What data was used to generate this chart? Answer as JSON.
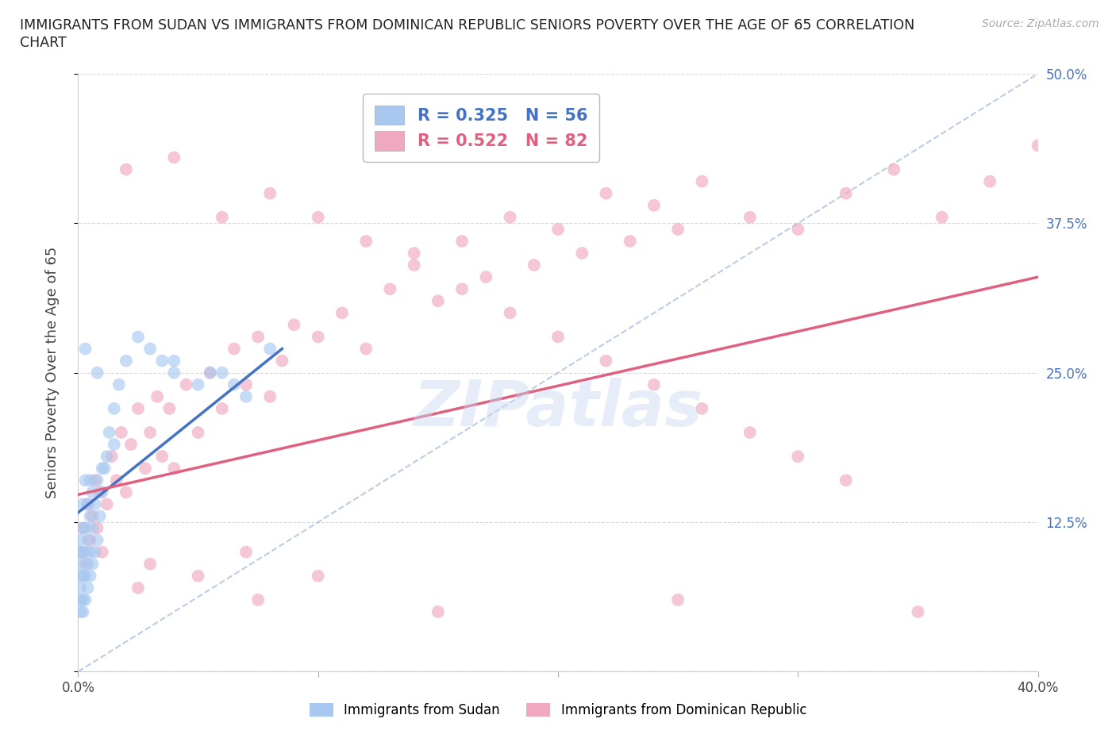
{
  "title": "IMMIGRANTS FROM SUDAN VS IMMIGRANTS FROM DOMINICAN REPUBLIC SENIORS POVERTY OVER THE AGE OF 65 CORRELATION\nCHART",
  "source": "Source: ZipAtlas.com",
  "ylabel": "Seniors Poverty Over the Age of 65",
  "xlim": [
    0.0,
    0.4
  ],
  "ylim": [
    0.0,
    0.5
  ],
  "xticks": [
    0.0,
    0.1,
    0.2,
    0.3,
    0.4
  ],
  "xticklabels": [
    "0.0%",
    "",
    "",
    "",
    "40.0%"
  ],
  "yticks": [
    0.0,
    0.125,
    0.25,
    0.375,
    0.5
  ],
  "yticklabels": [
    "",
    "12.5%",
    "25.0%",
    "37.5%",
    "50.0%"
  ],
  "color_sudan": "#a8c8f0",
  "color_dr": "#f0a8c0",
  "color_sudan_line": "#4472C4",
  "color_dr_line": "#e06080",
  "color_diagonal": "#a0b8d8",
  "watermark": "ZIPatlas",
  "legend_sudan_label": "R = 0.325   N = 56",
  "legend_dr_label": "R = 0.522   N = 82",
  "legend_sudan_color": "#a8c8f0",
  "legend_dr_color": "#f0a8c0",
  "legend_text_color_sudan": "#4472C4",
  "legend_text_color_dr": "#e06080",
  "sudan_x": [
    0.001,
    0.001,
    0.001,
    0.001,
    0.001,
    0.001,
    0.001,
    0.002,
    0.002,
    0.002,
    0.002,
    0.002,
    0.002,
    0.003,
    0.003,
    0.003,
    0.003,
    0.003,
    0.004,
    0.004,
    0.004,
    0.004,
    0.005,
    0.005,
    0.005,
    0.005,
    0.006,
    0.006,
    0.006,
    0.007,
    0.007,
    0.008,
    0.008,
    0.009,
    0.01,
    0.011,
    0.012,
    0.013,
    0.015,
    0.017,
    0.02,
    0.025,
    0.03,
    0.035,
    0.04,
    0.05,
    0.06,
    0.07,
    0.08,
    0.04,
    0.055,
    0.065,
    0.015,
    0.01,
    0.008,
    0.003
  ],
  "sudan_y": [
    0.05,
    0.06,
    0.07,
    0.08,
    0.09,
    0.1,
    0.11,
    0.05,
    0.06,
    0.08,
    0.1,
    0.12,
    0.14,
    0.06,
    0.08,
    0.1,
    0.12,
    0.16,
    0.07,
    0.09,
    0.11,
    0.14,
    0.08,
    0.1,
    0.13,
    0.16,
    0.09,
    0.12,
    0.15,
    0.1,
    0.14,
    0.11,
    0.16,
    0.13,
    0.15,
    0.17,
    0.18,
    0.2,
    0.22,
    0.24,
    0.26,
    0.28,
    0.27,
    0.26,
    0.25,
    0.24,
    0.25,
    0.23,
    0.27,
    0.26,
    0.25,
    0.24,
    0.19,
    0.17,
    0.25,
    0.27
  ],
  "dr_x": [
    0.001,
    0.002,
    0.003,
    0.004,
    0.005,
    0.006,
    0.007,
    0.008,
    0.009,
    0.01,
    0.012,
    0.014,
    0.016,
    0.018,
    0.02,
    0.022,
    0.025,
    0.028,
    0.03,
    0.033,
    0.035,
    0.038,
    0.04,
    0.045,
    0.05,
    0.055,
    0.06,
    0.065,
    0.07,
    0.075,
    0.08,
    0.085,
    0.09,
    0.1,
    0.11,
    0.12,
    0.13,
    0.14,
    0.15,
    0.16,
    0.17,
    0.18,
    0.19,
    0.2,
    0.21,
    0.22,
    0.23,
    0.24,
    0.25,
    0.26,
    0.28,
    0.3,
    0.32,
    0.34,
    0.36,
    0.38,
    0.4,
    0.02,
    0.04,
    0.06,
    0.08,
    0.1,
    0.12,
    0.14,
    0.16,
    0.18,
    0.2,
    0.22,
    0.24,
    0.26,
    0.28,
    0.3,
    0.32,
    0.025,
    0.05,
    0.075,
    0.15,
    0.25,
    0.35,
    0.03,
    0.07,
    0.1
  ],
  "dr_y": [
    0.1,
    0.12,
    0.09,
    0.14,
    0.11,
    0.13,
    0.16,
    0.12,
    0.15,
    0.1,
    0.14,
    0.18,
    0.16,
    0.2,
    0.15,
    0.19,
    0.22,
    0.17,
    0.2,
    0.23,
    0.18,
    0.22,
    0.17,
    0.24,
    0.2,
    0.25,
    0.22,
    0.27,
    0.24,
    0.28,
    0.23,
    0.26,
    0.29,
    0.28,
    0.3,
    0.27,
    0.32,
    0.35,
    0.31,
    0.36,
    0.33,
    0.38,
    0.34,
    0.37,
    0.35,
    0.4,
    0.36,
    0.39,
    0.37,
    0.41,
    0.38,
    0.37,
    0.4,
    0.42,
    0.38,
    0.41,
    0.44,
    0.42,
    0.43,
    0.38,
    0.4,
    0.38,
    0.36,
    0.34,
    0.32,
    0.3,
    0.28,
    0.26,
    0.24,
    0.22,
    0.2,
    0.18,
    0.16,
    0.07,
    0.08,
    0.06,
    0.05,
    0.06,
    0.05,
    0.09,
    0.1,
    0.08
  ],
  "sudan_line_x0": 0.0,
  "sudan_line_x1": 0.085,
  "sudan_line_y0": 0.133,
  "sudan_line_y1": 0.27,
  "dr_line_x0": 0.0,
  "dr_line_x1": 0.4,
  "dr_line_y0": 0.148,
  "dr_line_y1": 0.33
}
